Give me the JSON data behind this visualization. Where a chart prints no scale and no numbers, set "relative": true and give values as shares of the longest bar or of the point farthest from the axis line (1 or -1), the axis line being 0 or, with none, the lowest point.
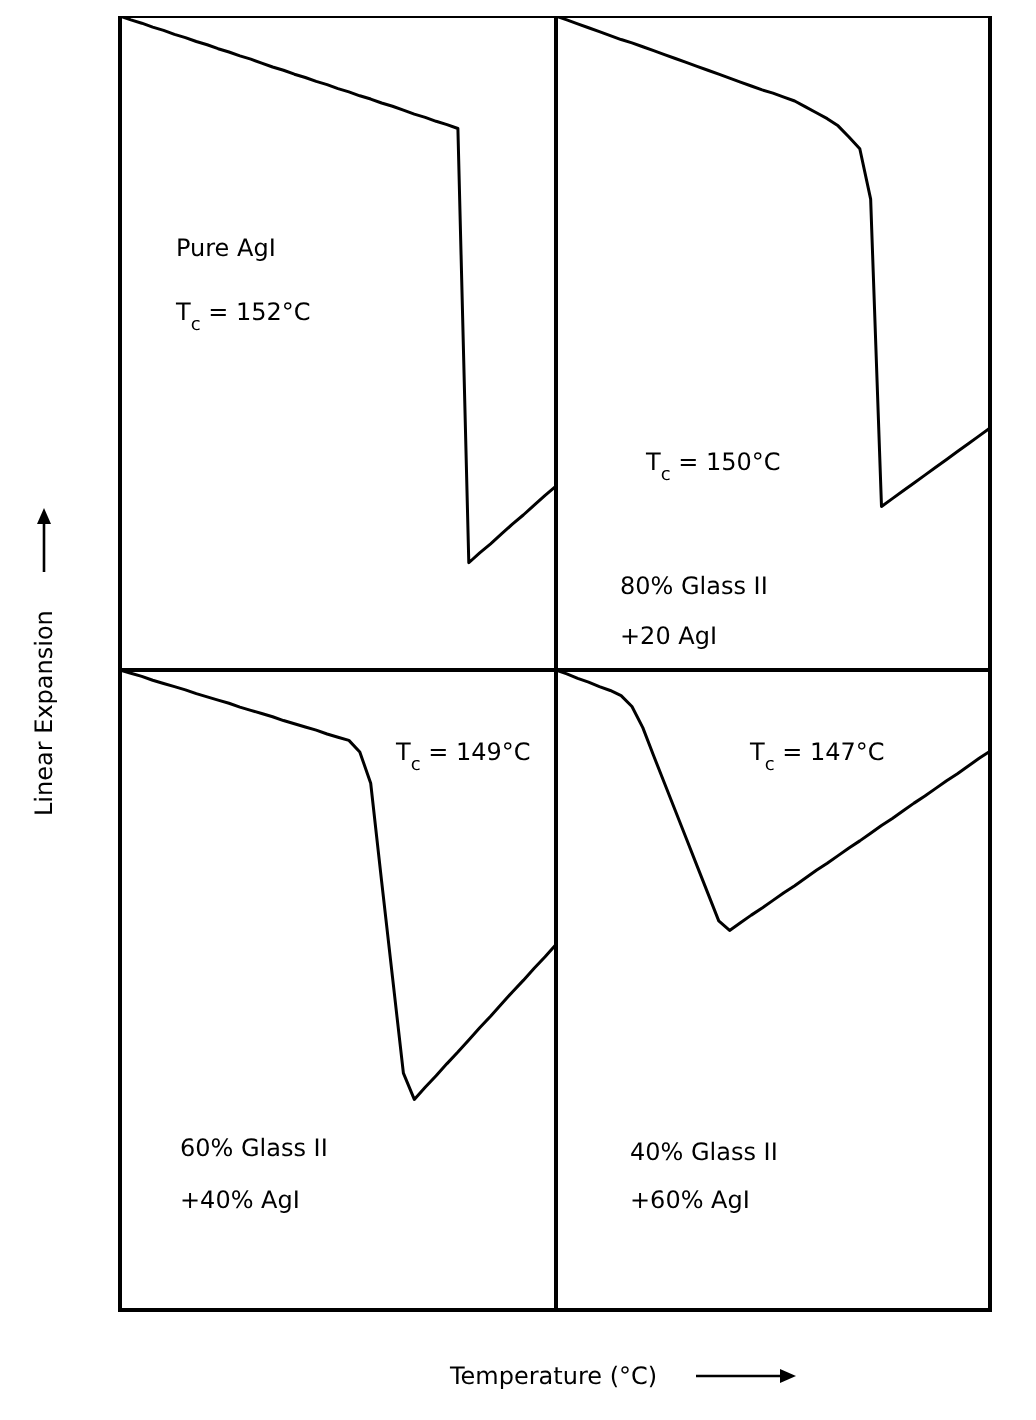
{
  "chart_data": [
    {
      "type": "line",
      "relative": true,
      "marker": "none",
      "line_style": "solid",
      "ylabel": "Linear Expansion",
      "categories": [
        null,
        null,
        null,
        null,
        null,
        null,
        null,
        null,
        null,
        null,
        null,
        null,
        null,
        null,
        null,
        null,
        null,
        null,
        null,
        null,
        null,
        null,
        null,
        null,
        null,
        null,
        null,
        null,
        null,
        null,
        null,
        null,
        null,
        null,
        null,
        null,
        null,
        null,
        null,
        null,
        null
      ],
      "series": [
        {
          "color": "#000000",
          "values": [
            1,
            0.994,
            0.989,
            0.983,
            0.978,
            0.972,
            0.967,
            0.961,
            0.956,
            0.95,
            0.945,
            0.939,
            0.934,
            0.928,
            0.922,
            0.917,
            0.911,
            0.906,
            0.9,
            0.895,
            0.889,
            0.884,
            0.878,
            0.873,
            0.867,
            0.862,
            0.856,
            0.85,
            0.845,
            0.839,
            0.834,
            0.828,
            0.164,
            0.179,
            0.193,
            0.208,
            0.223,
            0.237,
            0.252,
            0.267,
            0.281
          ]
        }
      ],
      "annotations": [
        "Pure AgI",
        "T$_{c}$ = 152°C"
      ]
    },
    {
      "type": "line",
      "relative": true,
      "marker": "none",
      "line_style": "solid",
      "categories": [
        null,
        null,
        null,
        null,
        null,
        null,
        null,
        null,
        null,
        null,
        null,
        null,
        null,
        null,
        null,
        null,
        null,
        null,
        null,
        null,
        null,
        null,
        null,
        null,
        null,
        null,
        null,
        null,
        null,
        null,
        null,
        null,
        null,
        null,
        null,
        null,
        null,
        null,
        null,
        null,
        null
      ],
      "series": [
        {
          "color": "#000000",
          "values": [
            1,
            0.994,
            0.988,
            0.982,
            0.976,
            0.97,
            0.964,
            0.959,
            0.953,
            0.947,
            0.941,
            0.935,
            0.929,
            0.923,
            0.917,
            0.911,
            0.905,
            0.899,
            0.893,
            0.887,
            0.882,
            0.876,
            0.87,
            0.861,
            0.852,
            0.843,
            0.832,
            0.815,
            0.797,
            0.72,
            0.25,
            0.262,
            0.274,
            0.286,
            0.298,
            0.31,
            0.322,
            0.334,
            0.346,
            0.358,
            0.37
          ]
        }
      ],
      "annotations": [
        "T$_{c}$ = 150°C",
        "80% Glass II",
        "+20 AgI"
      ]
    },
    {
      "type": "line",
      "relative": true,
      "marker": "none",
      "line_style": "solid",
      "xlabel": "Temperature (°C)",
      "categories": [
        null,
        null,
        null,
        null,
        null,
        null,
        null,
        null,
        null,
        null,
        null,
        null,
        null,
        null,
        null,
        null,
        null,
        null,
        null,
        null,
        null,
        null,
        null,
        null,
        null,
        null,
        null,
        null,
        null,
        null,
        null,
        null,
        null,
        null,
        null,
        null,
        null,
        null,
        null,
        null,
        null
      ],
      "series": [
        {
          "color": "#000000",
          "values": [
            1,
            0.995,
            0.99,
            0.984,
            0.979,
            0.974,
            0.969,
            0.963,
            0.958,
            0.953,
            0.948,
            0.942,
            0.937,
            0.932,
            0.927,
            0.921,
            0.916,
            0.911,
            0.906,
            0.9,
            0.895,
            0.89,
            0.872,
            0.823,
            0.67,
            0.52,
            0.37,
            0.329,
            0.348,
            0.366,
            0.385,
            0.403,
            0.422,
            0.441,
            0.459,
            0.478,
            0.497,
            0.515,
            0.534,
            0.552,
            0.571
          ]
        }
      ],
      "annotations": [
        "T$_{c}$ = 149°C",
        "60% Glass II",
        "+40% AgI"
      ]
    },
    {
      "type": "line",
      "relative": true,
      "marker": "none",
      "line_style": "solid",
      "categories": [
        null,
        null,
        null,
        null,
        null,
        null,
        null,
        null,
        null,
        null,
        null,
        null,
        null,
        null,
        null,
        null,
        null,
        null,
        null,
        null,
        null,
        null,
        null,
        null,
        null,
        null,
        null,
        null,
        null,
        null,
        null,
        null,
        null,
        null,
        null,
        null,
        null,
        null,
        null,
        null,
        null
      ],
      "series": [
        {
          "color": "#000000",
          "values": [
            1,
            0.994,
            0.987,
            0.981,
            0.974,
            0.968,
            0.96,
            0.943,
            0.91,
            0.866,
            0.823,
            0.78,
            0.737,
            0.694,
            0.651,
            0.608,
            0.593,
            0.605,
            0.617,
            0.628,
            0.64,
            0.652,
            0.663,
            0.675,
            0.687,
            0.698,
            0.71,
            0.722,
            0.733,
            0.745,
            0.757,
            0.768,
            0.78,
            0.792,
            0.803,
            0.815,
            0.827,
            0.838,
            0.85,
            0.862,
            0.873
          ]
        }
      ],
      "annotations": [
        "T$_{c}$ = 147°C",
        "40% Glass II",
        "+60% AgI"
      ]
    }
  ]
}
